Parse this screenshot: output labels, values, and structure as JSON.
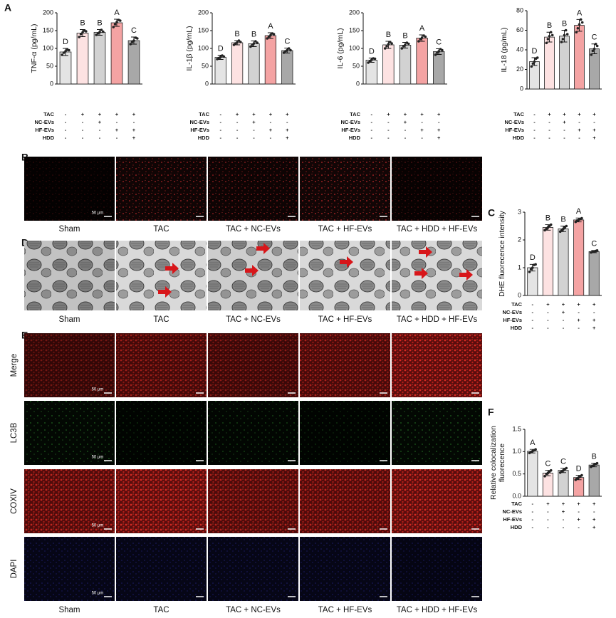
{
  "panel_labels": [
    "A",
    "B",
    "C",
    "D",
    "E",
    "F"
  ],
  "chart_data": [
    {
      "type": "bar",
      "ylabel": "TNF-α (pg/mL)",
      "ylim": [
        0,
        200
      ],
      "yticks": [
        0,
        50,
        100,
        150,
        200
      ],
      "values": [
        90,
        143,
        145,
        172,
        122
      ],
      "errors": [
        10,
        10,
        8,
        10,
        10
      ],
      "points": [
        [
          82,
          88,
          92,
          96,
          95
        ],
        [
          132,
          140,
          145,
          150,
          148
        ],
        [
          138,
          142,
          146,
          152,
          147
        ],
        [
          160,
          168,
          174,
          180,
          178
        ],
        [
          112,
          118,
          122,
          130,
          128
        ]
      ],
      "letters": [
        "D",
        "B",
        "B",
        "A",
        "C"
      ],
      "colors": [
        "#e4e4e4",
        "#fde2e2",
        "#d2d2d2",
        "#f4a3a3",
        "#a8a8a8"
      ],
      "treatments": [
        {
          "name": "TAC",
          "signs": [
            "-",
            "+",
            "+",
            "+",
            "+"
          ]
        },
        {
          "name": "NC-EVs",
          "signs": [
            "-",
            "-",
            "+",
            "-",
            "-"
          ]
        },
        {
          "name": "HF-EVs",
          "signs": [
            "-",
            "-",
            "-",
            "+",
            "+"
          ]
        },
        {
          "name": "HDD",
          "signs": [
            "-",
            "-",
            "-",
            "-",
            "+"
          ]
        }
      ]
    },
    {
      "type": "bar",
      "ylabel": "IL-1β (pg/mL)",
      "ylim": [
        0,
        200
      ],
      "yticks": [
        0,
        50,
        100,
        150,
        200
      ],
      "values": [
        75,
        116,
        113,
        136,
        94
      ],
      "errors": [
        6,
        6,
        8,
        8,
        7
      ],
      "points": [
        [
          70,
          73,
          76,
          80,
          77
        ],
        [
          110,
          114,
          117,
          122,
          118
        ],
        [
          105,
          110,
          114,
          120,
          116
        ],
        [
          128,
          133,
          137,
          142,
          140
        ],
        [
          88,
          92,
          95,
          100,
          95
        ]
      ],
      "letters": [
        "D",
        "B",
        "B",
        "A",
        "C"
      ],
      "colors": [
        "#e4e4e4",
        "#fde2e2",
        "#d2d2d2",
        "#f4a3a3",
        "#a8a8a8"
      ],
      "treatments": [
        {
          "name": "TAC",
          "signs": [
            "-",
            "+",
            "+",
            "+",
            "+"
          ]
        },
        {
          "name": "NC-EVs",
          "signs": [
            "-",
            "-",
            "+",
            "-",
            "-"
          ]
        },
        {
          "name": "HF-EVs",
          "signs": [
            "-",
            "-",
            "-",
            "+",
            "+"
          ]
        },
        {
          "name": "HDD",
          "signs": [
            "-",
            "-",
            "-",
            "-",
            "+"
          ]
        }
      ]
    },
    {
      "type": "bar",
      "ylabel": "IL-6 (pg/mL)",
      "ylim": [
        0,
        200
      ],
      "yticks": [
        0,
        50,
        100,
        150,
        200
      ],
      "values": [
        67,
        110,
        109,
        129,
        91
      ],
      "errors": [
        6,
        10,
        8,
        9,
        8
      ],
      "points": [
        [
          60,
          64,
          68,
          72,
          71
        ],
        [
          100,
          106,
          112,
          118,
          114
        ],
        [
          100,
          106,
          110,
          116,
          113
        ],
        [
          120,
          126,
          130,
          136,
          133
        ],
        [
          82,
          88,
          92,
          98,
          95
        ]
      ],
      "letters": [
        "D",
        "B",
        "B",
        "A",
        "C"
      ],
      "colors": [
        "#e4e4e4",
        "#fde2e2",
        "#d2d2d2",
        "#f4a3a3",
        "#a8a8a8"
      ],
      "treatments": [
        {
          "name": "TAC",
          "signs": [
            "-",
            "+",
            "+",
            "+",
            "+"
          ]
        },
        {
          "name": "NC-EVs",
          "signs": [
            "-",
            "-",
            "+",
            "-",
            "-"
          ]
        },
        {
          "name": "HF-EVs",
          "signs": [
            "-",
            "-",
            "-",
            "+",
            "+"
          ]
        },
        {
          "name": "HDD",
          "signs": [
            "-",
            "-",
            "-",
            "-",
            "+"
          ]
        }
      ]
    },
    {
      "type": "bar",
      "ylabel": "IL-18 (pg/mL)",
      "ylim": [
        0,
        80
      ],
      "yticks": [
        0,
        20,
        40,
        60,
        80
      ],
      "values": [
        28,
        53,
        54,
        65,
        41
      ],
      "errors": [
        4,
        5,
        6,
        6,
        5
      ],
      "points": [
        [
          23,
          26,
          28,
          31,
          32
        ],
        [
          47,
          51,
          54,
          58,
          55
        ],
        [
          48,
          51,
          55,
          60,
          56
        ],
        [
          58,
          62,
          66,
          71,
          68
        ],
        [
          35,
          39,
          41,
          46,
          44
        ]
      ],
      "letters": [
        "D",
        "B",
        "B",
        "A",
        "C"
      ],
      "colors": [
        "#e4e4e4",
        "#fde2e2",
        "#d2d2d2",
        "#f4a3a3",
        "#a8a8a8"
      ],
      "treatments": [
        {
          "name": "TAC",
          "signs": [
            "-",
            "+",
            "+",
            "+",
            "+"
          ]
        },
        {
          "name": "NC-EVs",
          "signs": [
            "-",
            "-",
            "+",
            "-",
            "-"
          ]
        },
        {
          "name": "HF-EVs",
          "signs": [
            "-",
            "-",
            "-",
            "+",
            "+"
          ]
        },
        {
          "name": "HDD",
          "signs": [
            "-",
            "-",
            "-",
            "-",
            "+"
          ]
        }
      ]
    },
    {
      "type": "bar",
      "ylabel": "DHE fluorecence intensity",
      "ylim": [
        0,
        3
      ],
      "yticks": [
        0,
        1,
        2,
        3
      ],
      "values": [
        1.0,
        2.45,
        2.4,
        2.72,
        1.58
      ],
      "errors": [
        0.12,
        0.1,
        0.1,
        0.07,
        0.04
      ],
      "points": [
        [
          0.85,
          0.95,
          1.0,
          1.1,
          1.12
        ],
        [
          2.35,
          2.4,
          2.45,
          2.5,
          2.55
        ],
        [
          2.3,
          2.35,
          2.4,
          2.45,
          2.5
        ],
        [
          2.65,
          2.7,
          2.72,
          2.75,
          2.78
        ],
        [
          1.55,
          1.57,
          1.58,
          1.6,
          1.62
        ]
      ],
      "letters": [
        "D",
        "B",
        "B",
        "A",
        "C"
      ],
      "colors": [
        "#e4e4e4",
        "#fde2e2",
        "#d2d2d2",
        "#f4a3a3",
        "#a8a8a8"
      ],
      "treatments": [
        {
          "name": "TAC",
          "signs": [
            "-",
            "+",
            "+",
            "+",
            "+"
          ]
        },
        {
          "name": "NC-EVs",
          "signs": [
            "-",
            "-",
            "+",
            "-",
            "-"
          ]
        },
        {
          "name": "HF-EVs",
          "signs": [
            "-",
            "-",
            "-",
            "+",
            "+"
          ]
        },
        {
          "name": "HDD",
          "signs": [
            "-",
            "-",
            "-",
            "-",
            "+"
          ]
        }
      ]
    },
    {
      "type": "bar",
      "ylabel": [
        "Relative colocalization",
        "fluorecence"
      ],
      "ylim": [
        0,
        1.5
      ],
      "yticks": [
        {
          "value": 0,
          "label": "0.0"
        },
        {
          "value": 0.5,
          "label": "0.5"
        },
        {
          "value": 1,
          "label": "1.0"
        },
        {
          "value": 1.5,
          "label": "1.5"
        }
      ],
      "values": [
        1.01,
        0.52,
        0.58,
        0.42,
        0.7
      ],
      "errors": [
        0.04,
        0.06,
        0.05,
        0.05,
        0.04
      ],
      "points": [
        [
          0.97,
          0.99,
          1.01,
          1.03,
          1.05
        ],
        [
          0.45,
          0.5,
          0.52,
          0.55,
          0.58
        ],
        [
          0.53,
          0.56,
          0.58,
          0.6,
          0.63
        ],
        [
          0.37,
          0.4,
          0.42,
          0.44,
          0.47
        ],
        [
          0.66,
          0.68,
          0.7,
          0.72,
          0.74
        ]
      ],
      "letters": [
        "A",
        "C",
        "C",
        "D",
        "B"
      ],
      "colors": [
        "#e4e4e4",
        "#fde2e2",
        "#d2d2d2",
        "#f4a3a3",
        "#a8a8a8"
      ],
      "treatments": [
        {
          "name": "TAC",
          "signs": [
            "-",
            "+",
            "+",
            "+",
            "+"
          ]
        },
        {
          "name": "NC-EVs",
          "signs": [
            "-",
            "-",
            "+",
            "-",
            "-"
          ]
        },
        {
          "name": "HF-EVs",
          "signs": [
            "-",
            "-",
            "-",
            "+",
            "+"
          ]
        },
        {
          "name": "HDD",
          "signs": [
            "-",
            "-",
            "-",
            "-",
            "+"
          ]
        }
      ]
    }
  ],
  "panel_b": {
    "labels": [
      "Sham",
      "TAC",
      "TAC + NC-EVs",
      "TAC + HF-EVs",
      "TAC + HDD + HF-EVs"
    ],
    "scale_bar": "50 μm"
  },
  "panel_d": {
    "labels": [
      "Sham",
      "TAC",
      "TAC + NC-EVs",
      "TAC + HF-EVs",
      "TAC + HDD + HF-EVs"
    ]
  },
  "panel_e": {
    "row_labels": [
      "Merge",
      "LC3B",
      "COXIV",
      "DAPI"
    ],
    "column_labels": [
      "Sham",
      "TAC",
      "TAC + NC-EVs",
      "TAC + HF-EVs",
      "TAC + HDD + HF-EVs"
    ],
    "scale_bar": "50 μm"
  }
}
